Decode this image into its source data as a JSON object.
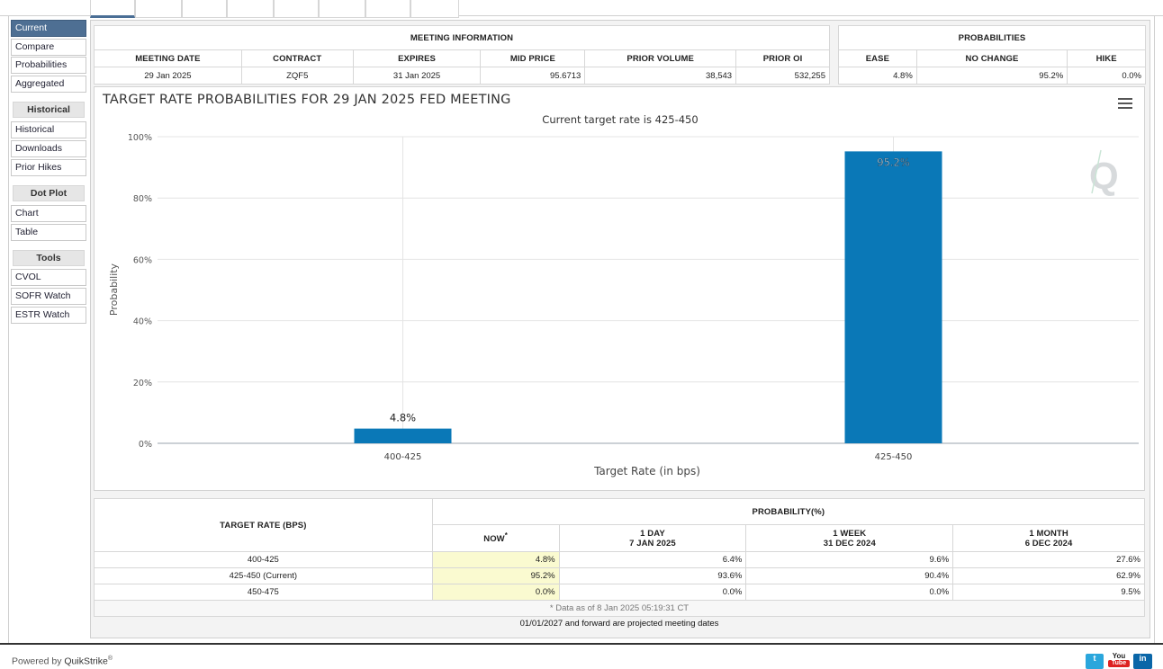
{
  "sidebar": {
    "current": "Current",
    "compare": "Compare",
    "probabilities": "Probabilities",
    "aggregated": "Aggregated",
    "historical_head": "Historical",
    "historical": "Historical",
    "downloads": "Downloads",
    "prior_hikes": "Prior Hikes",
    "dotplot_head": "Dot Plot",
    "chart": "Chart",
    "table": "Table",
    "tools_head": "Tools",
    "cvol": "CVOL",
    "sofr": "SOFR Watch",
    "estr": "ESTR Watch"
  },
  "meeting_info": {
    "title": "MEETING INFORMATION",
    "headers": [
      "MEETING DATE",
      "CONTRACT",
      "EXPIRES",
      "MID PRICE",
      "PRIOR VOLUME",
      "PRIOR OI"
    ],
    "values": [
      "29 Jan 2025",
      "ZQF5",
      "31 Jan 2025",
      "95.6713",
      "38,543",
      "532,255"
    ]
  },
  "probabilities": {
    "title": "PROBABILITIES",
    "headers": [
      "EASE",
      "NO CHANGE",
      "HIKE"
    ],
    "values": [
      "4.8%",
      "95.2%",
      "0.0%"
    ]
  },
  "chart_data": {
    "type": "bar",
    "title": "TARGET RATE PROBABILITIES FOR 29 JAN 2025 FED MEETING",
    "subtitle": "Current target rate is 425-450",
    "categories": [
      "400-425",
      "425-450"
    ],
    "values": [
      4.8,
      95.2
    ],
    "data_labels": [
      "4.8%",
      "95.2%"
    ],
    "xlabel": "Target Rate (in bps)",
    "ylabel": "Probability",
    "ylim": [
      0,
      100
    ],
    "yticks": [
      "0%",
      "20%",
      "40%",
      "60%",
      "80%",
      "100%"
    ],
    "grid": true,
    "bar_color": "#0a78b7"
  },
  "prob_table": {
    "col_target": "TARGET RATE (BPS)",
    "col_prob": "PROBABILITY(%)",
    "now": "NOW",
    "now_mark": "*",
    "day_label": "1 DAY",
    "day_date": "7 JAN 2025",
    "week_label": "1 WEEK",
    "week_date": "31 DEC 2024",
    "month_label": "1 MONTH",
    "month_date": "6 DEC 2024",
    "rows": [
      {
        "rate": "400-425",
        "now": "4.8%",
        "day": "6.4%",
        "week": "9.6%",
        "month": "27.6%"
      },
      {
        "rate": "425-450 (Current)",
        "now": "95.2%",
        "day": "93.6%",
        "week": "90.4%",
        "month": "62.9%"
      },
      {
        "rate": "450-475",
        "now": "0.0%",
        "day": "0.0%",
        "week": "0.0%",
        "month": "9.5%"
      }
    ],
    "note": "* Data as of 8 Jan 2025 05:19:31 CT",
    "projected": "01/01/2027 and forward are projected meeting dates"
  },
  "footer": {
    "powered": "Powered by",
    "brand": "QuikStrike",
    "reg": "®"
  }
}
